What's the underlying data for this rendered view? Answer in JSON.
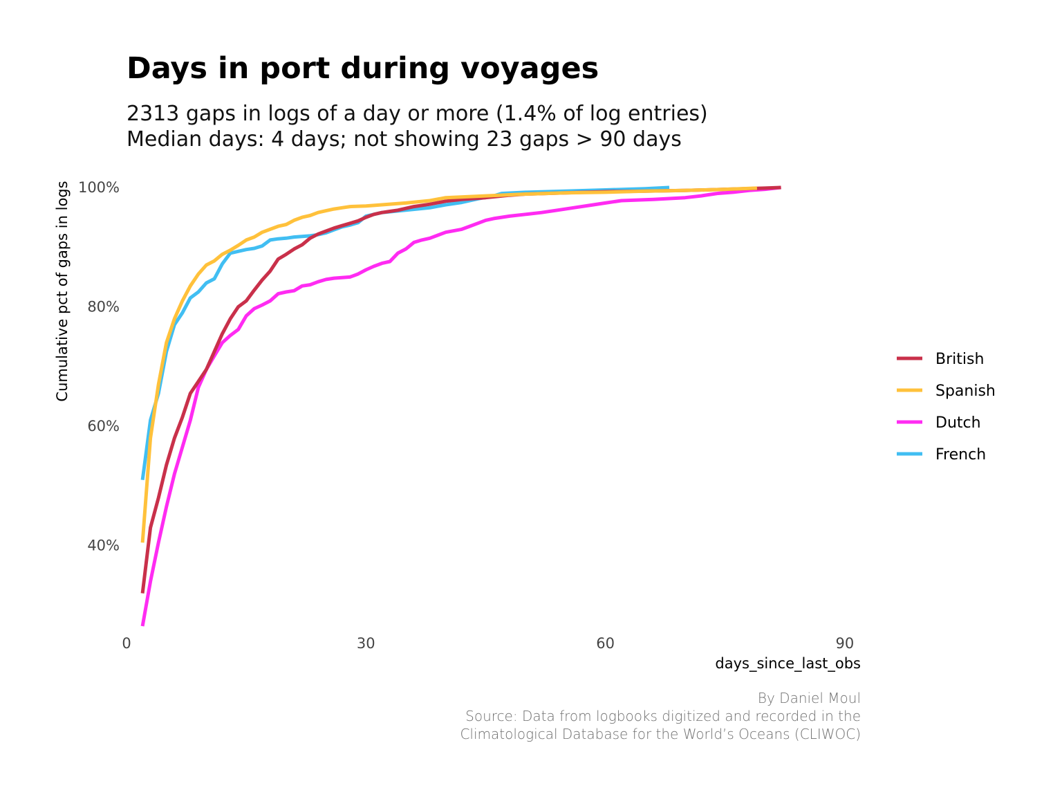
{
  "title": "Days in port during voyages",
  "subtitle_lines": [
    "2313 gaps in logs of a day or more (1.4% of log entries)",
    "Median days: 4 days; not showing 23 gaps > 90 days"
  ],
  "caption_lines": [
    "By Daniel Moul",
    "Source: Data from logbooks digitized and recorded in the",
    "Climatological Database for the World’s Oceans (CLIWOC)"
  ],
  "chart_data": {
    "type": "line",
    "title": "Days in port during voyages",
    "xlabel": "days_since_last_obs",
    "ylabel": "Cumulative pct of gaps in logs",
    "xlim": [
      0,
      92
    ],
    "ylim": [
      0.25,
      1.0
    ],
    "x_ticks": [
      0,
      30,
      60,
      90
    ],
    "x_tick_labels": [
      "0",
      "30",
      "60",
      "90"
    ],
    "y_ticks": [
      0.4,
      0.6,
      0.8,
      1.0
    ],
    "y_tick_labels": [
      "40%",
      "60%",
      "80%",
      "100%"
    ],
    "grid": false,
    "legend_position": "right",
    "series": [
      {
        "name": "British",
        "color": "#C9304A",
        "x": [
          2,
          3,
          4,
          5,
          6,
          7,
          8,
          9,
          10,
          11,
          12,
          13,
          14,
          15,
          16,
          17,
          18,
          19,
          20,
          21,
          22,
          23,
          24,
          25,
          26,
          27,
          28,
          29,
          30,
          31,
          32,
          33,
          34,
          35,
          36,
          38,
          40,
          42,
          45,
          48,
          50,
          55,
          60,
          65,
          70,
          75,
          80,
          82
        ],
        "y": [
          0.32,
          0.43,
          0.48,
          0.535,
          0.58,
          0.615,
          0.655,
          0.675,
          0.695,
          0.725,
          0.755,
          0.78,
          0.8,
          0.81,
          0.828,
          0.845,
          0.86,
          0.88,
          0.888,
          0.897,
          0.904,
          0.915,
          0.922,
          0.927,
          0.932,
          0.936,
          0.94,
          0.944,
          0.95,
          0.955,
          0.958,
          0.96,
          0.962,
          0.965,
          0.968,
          0.972,
          0.977,
          0.98,
          0.983,
          0.987,
          0.989,
          0.991,
          0.993,
          0.994,
          0.995,
          0.997,
          0.999,
          1.0
        ]
      },
      {
        "name": "Spanish",
        "color": "#FFC13B",
        "x": [
          2,
          3,
          4,
          5,
          6,
          7,
          8,
          9,
          10,
          11,
          12,
          13,
          14,
          15,
          16,
          17,
          18,
          19,
          20,
          21,
          22,
          23,
          24,
          25,
          26,
          27,
          28,
          30,
          32,
          35,
          38,
          40,
          45,
          50,
          55,
          60,
          65,
          70,
          75,
          79
        ],
        "y": [
          0.405,
          0.58,
          0.67,
          0.74,
          0.78,
          0.81,
          0.835,
          0.855,
          0.87,
          0.877,
          0.888,
          0.895,
          0.903,
          0.912,
          0.917,
          0.925,
          0.93,
          0.935,
          0.938,
          0.945,
          0.95,
          0.953,
          0.958,
          0.961,
          0.964,
          0.966,
          0.968,
          0.969,
          0.971,
          0.974,
          0.978,
          0.983,
          0.986,
          0.989,
          0.991,
          0.992,
          0.994,
          0.995,
          0.997,
          0.999
        ]
      },
      {
        "name": "Dutch",
        "color": "#FF2BF2",
        "x": [
          2,
          3,
          4,
          5,
          6,
          7,
          8,
          9,
          10,
          11,
          12,
          13,
          14,
          15,
          16,
          17,
          18,
          19,
          20,
          21,
          22,
          23,
          24,
          25,
          26,
          27,
          28,
          29,
          30,
          31,
          32,
          33,
          34,
          35,
          36,
          37,
          38,
          39,
          40,
          42,
          43,
          44,
          45,
          46,
          48,
          50,
          52,
          54,
          56,
          58,
          60,
          62,
          66,
          70,
          72,
          74,
          76,
          78,
          80,
          82
        ],
        "y": [
          0.265,
          0.34,
          0.405,
          0.465,
          0.52,
          0.565,
          0.61,
          0.665,
          0.695,
          0.718,
          0.74,
          0.752,
          0.762,
          0.785,
          0.797,
          0.803,
          0.81,
          0.822,
          0.825,
          0.827,
          0.835,
          0.837,
          0.842,
          0.846,
          0.848,
          0.849,
          0.85,
          0.855,
          0.862,
          0.868,
          0.873,
          0.876,
          0.89,
          0.897,
          0.908,
          0.912,
          0.915,
          0.92,
          0.925,
          0.93,
          0.935,
          0.94,
          0.945,
          0.948,
          0.952,
          0.955,
          0.958,
          0.962,
          0.966,
          0.97,
          0.974,
          0.978,
          0.98,
          0.983,
          0.986,
          0.99,
          0.992,
          0.995,
          0.997,
          1.0
        ]
      },
      {
        "name": "French",
        "color": "#41BEF2",
        "x": [
          2,
          3,
          4,
          5,
          6,
          7,
          8,
          9,
          10,
          11,
          12,
          13,
          14,
          15,
          16,
          17,
          18,
          19,
          20,
          21,
          22,
          23,
          24,
          25,
          26,
          27,
          28,
          29,
          30,
          32,
          35,
          38,
          40,
          42,
          44,
          46,
          47,
          50,
          55,
          60,
          65,
          68
        ],
        "y": [
          0.51,
          0.61,
          0.655,
          0.725,
          0.77,
          0.79,
          0.815,
          0.825,
          0.84,
          0.847,
          0.872,
          0.89,
          0.893,
          0.896,
          0.898,
          0.902,
          0.912,
          0.914,
          0.915,
          0.917,
          0.918,
          0.919,
          0.921,
          0.924,
          0.929,
          0.934,
          0.937,
          0.941,
          0.952,
          0.958,
          0.962,
          0.966,
          0.971,
          0.975,
          0.981,
          0.986,
          0.99,
          0.992,
          0.994,
          0.996,
          0.998,
          1.0
        ]
      }
    ]
  }
}
